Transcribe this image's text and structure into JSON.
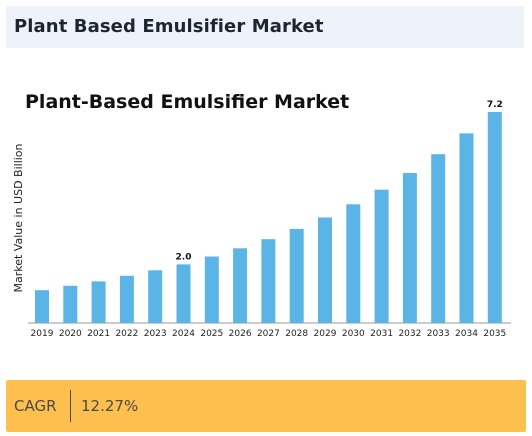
{
  "header": {
    "title": "Plant Based Emulsifier Market"
  },
  "chart_data": {
    "type": "bar",
    "title": "Plant-Based Emulsifier Market",
    "xlabel": "",
    "ylabel": "Market Value in USD Billion",
    "categories": [
      "2019",
      "2020",
      "2021",
      "2022",
      "2023",
      "2024",
      "2025",
      "2026",
      "2027",
      "2028",
      "2029",
      "2030",
      "2031",
      "2032",
      "2033",
      "2034",
      "2035"
    ],
    "values": [
      1.12,
      1.27,
      1.42,
      1.61,
      1.8,
      2.0,
      2.27,
      2.55,
      2.86,
      3.21,
      3.6,
      4.05,
      4.55,
      5.12,
      5.76,
      6.47,
      7.2
    ],
    "data_labels": [
      {
        "category": "2024",
        "text": "2.0"
      },
      {
        "category": "2035",
        "text": "7.2"
      }
    ],
    "ylim": [
      0,
      7.2
    ],
    "grid": false,
    "bar_color": "#5ab4e5"
  },
  "footer": {
    "label": "CAGR",
    "value": "12.27%"
  }
}
